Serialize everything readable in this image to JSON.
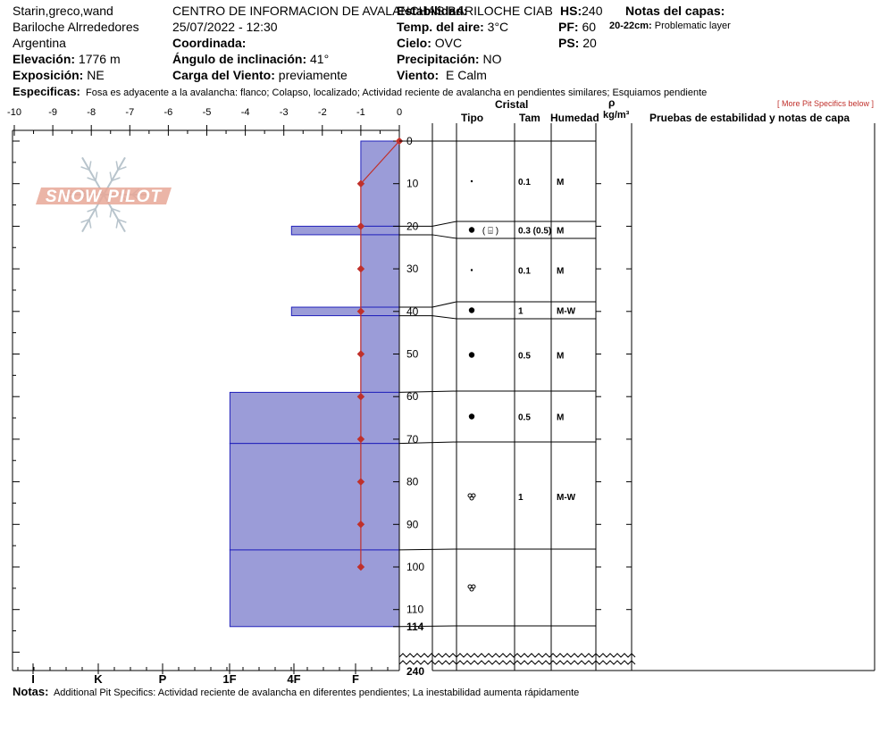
{
  "header": {
    "observers": "Starin,greco,wand",
    "location": "Bariloche Alrrededores",
    "country": "Argentina",
    "elevation_label": "Elevación:",
    "elevation_value": "1776 m",
    "aspect_label": "Exposición:",
    "aspect_value": "NE",
    "center": "CENTRO DE INFORMACION DE AVALANCHAS BARILOCHE CIAB",
    "datetime": "25/07/2022 - 12:30",
    "coord_label": "Coordinada:",
    "coord_value": "",
    "slope_label": "Ángulo de inclinación:",
    "slope_value": "41°",
    "wind_load_label": "Carga del Viento:",
    "wind_load_value": "previamente",
    "stability_label": "Estabilidad:",
    "stability_value": "",
    "air_temp_label": "Temp. del aire:",
    "air_temp_value": "3°C",
    "sky_label": "Cielo:",
    "sky_value": "OVC",
    "precip_label": "Precipitación:",
    "precip_value": "NO",
    "wind_label": "Viento:",
    "wind_value": "E Calm",
    "hs_label": "HS:",
    "hs_value": "240",
    "pf_label": "PF:",
    "pf_value": "60",
    "ps_label": "PS:",
    "ps_value": "20",
    "notes_title": "Notas del capas:",
    "layer_note_range": "20-22cm:",
    "layer_note_text": "Problematic layer",
    "specifics_label": "Especificas:",
    "specifics_text": "Fosa es adyacente a la avalancha: flanco;  Colapso, localizado;  Actividad reciente de avalancha en pendientes similares;  Esquiamos pendiente",
    "more_specifics": "[ More Pit Specifics below ]"
  },
  "table_headers": {
    "crystal": "Cristal",
    "type": "Tipo",
    "size": "Tam",
    "moisture": "Humedad",
    "rho": "ρ",
    "density_unit": "kg/m³",
    "tests": "Pruebas de estabilidad y notas de capa"
  },
  "axis": {
    "top_ticks": [
      "-10",
      "-9",
      "-8",
      "-7",
      "-6",
      "-5",
      "-4",
      "-3",
      "-2",
      "-1",
      "0"
    ],
    "hardness_labels": [
      "I",
      "K",
      "P",
      "1F",
      "4F",
      "F"
    ],
    "depth_ticks": [
      "0",
      "10",
      "20",
      "30",
      "40",
      "50",
      "60",
      "70",
      "80",
      "90",
      "100",
      "110",
      "114"
    ],
    "bottom_depth": "240"
  },
  "layers": [
    {
      "top": 0,
      "bottom": 20,
      "hardness": 1,
      "grain": "small-dot",
      "size": "0.1",
      "moisture": "M"
    },
    {
      "top": 20,
      "bottom": 22,
      "hardness": 2.8,
      "grain": "dot-box",
      "size": "0.3 (0.5)",
      "moisture": "M"
    },
    {
      "top": 22,
      "bottom": 39,
      "hardness": 1,
      "grain": "small-dot",
      "size": "0.1",
      "moisture": "M"
    },
    {
      "top": 39,
      "bottom": 41,
      "hardness": 2.8,
      "grain": "dot",
      "size": "1",
      "moisture": "M-W"
    },
    {
      "top": 41,
      "bottom": 59,
      "hardness": 1,
      "grain": "dot",
      "size": "0.5",
      "moisture": "M"
    },
    {
      "top": 59,
      "bottom": 71,
      "hardness": 4.4,
      "grain": "dot",
      "size": "0.5",
      "moisture": "M"
    },
    {
      "top": 71,
      "bottom": 96,
      "hardness": 4.4,
      "grain": "clusters",
      "size": "1",
      "moisture": "M-W"
    },
    {
      "top": 96,
      "bottom": 114,
      "hardness": 4.4,
      "grain": "clusters",
      "size": "",
      "moisture": ""
    }
  ],
  "temperature_profile": [
    {
      "depth": 0,
      "temp": 0
    },
    {
      "depth": 10,
      "temp": -1
    },
    {
      "depth": 20,
      "temp": -1
    },
    {
      "depth": 30,
      "temp": -1
    },
    {
      "depth": 40,
      "temp": -1
    },
    {
      "depth": 50,
      "temp": -1
    },
    {
      "depth": 60,
      "temp": -1
    },
    {
      "depth": 70,
      "temp": -1
    },
    {
      "depth": 80,
      "temp": -1
    },
    {
      "depth": 90,
      "temp": -1
    },
    {
      "depth": 100,
      "temp": -1
    }
  ],
  "watermark": "SNOW PILOT",
  "colors": {
    "layer_fill": "#9b9cd8",
    "layer_line": "#2222bb",
    "temp": "#c0302b",
    "watermark": "#e8a898",
    "flake": "#b8c4cc"
  },
  "footer": {
    "notes_label": "Notas:",
    "notes_text": "Additional Pit Specifics: Actividad reciente de avalancha en diferentes pendientes; La inestabilidad aumenta rápidamente"
  }
}
